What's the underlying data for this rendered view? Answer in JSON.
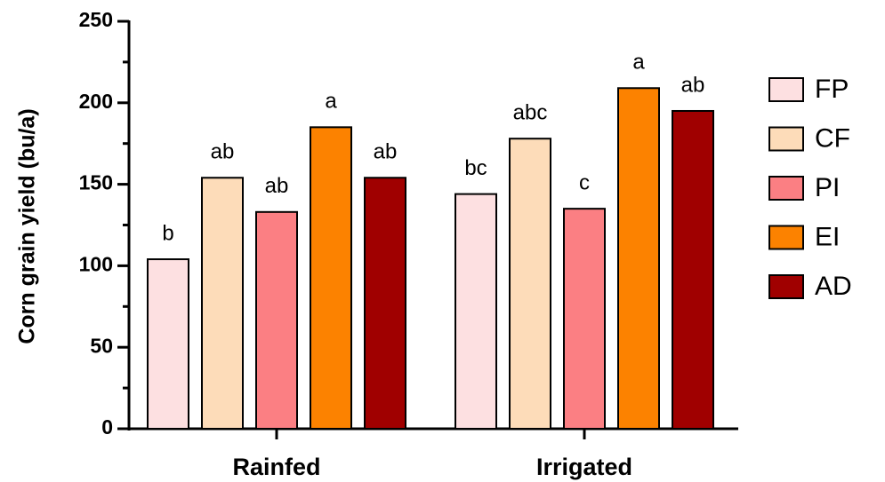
{
  "chart_data": {
    "type": "bar",
    "y_label": "Corn grain yield (bu/a)",
    "categories": [
      "Rainfed",
      "Irrigated"
    ],
    "series": [
      {
        "name": "FP",
        "color": "#fde0e1",
        "values": [
          104,
          144
        ],
        "letters": [
          "b",
          "bc"
        ]
      },
      {
        "name": "CF",
        "color": "#fddcb9",
        "values": [
          154,
          178
        ],
        "letters": [
          "ab",
          "abc"
        ]
      },
      {
        "name": "PI",
        "color": "#fb7f83",
        "values": [
          133,
          135
        ],
        "letters": [
          "ab",
          "c"
        ]
      },
      {
        "name": "EI",
        "color": "#fc8200",
        "values": [
          185,
          209
        ],
        "letters": [
          "a",
          "a"
        ]
      },
      {
        "name": "AD",
        "color": "#a00000",
        "values": [
          154,
          195
        ],
        "letters": [
          "ab",
          "ab"
        ]
      }
    ],
    "ylim": [
      0,
      250
    ],
    "yticks": [
      0,
      50,
      100,
      150,
      200,
      250
    ],
    "yminorticks": [
      25,
      75,
      125,
      175,
      225
    ],
    "legend": "right"
  }
}
